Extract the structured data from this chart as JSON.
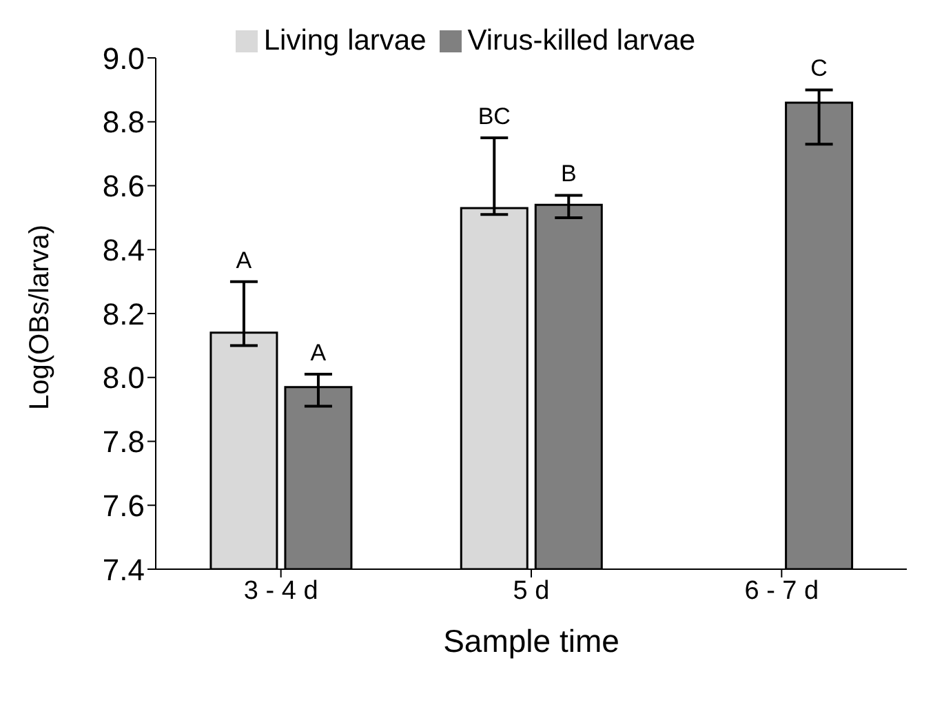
{
  "chart_data": {
    "type": "bar",
    "categories": [
      "3 - 4 d",
      "5 d",
      "6 - 7 d"
    ],
    "series": [
      {
        "name": "Living larvae",
        "color": "#d9d9d9",
        "values": [
          8.14,
          8.53,
          null
        ],
        "errors": [
          [
            8.1,
            8.3
          ],
          [
            8.51,
            8.75
          ],
          null
        ]
      },
      {
        "name": "Virus-killed larvae",
        "color": "#808080",
        "values": [
          7.97,
          8.54,
          8.86
        ],
        "errors": [
          [
            7.91,
            8.01
          ],
          [
            8.5,
            8.57
          ],
          [
            8.73,
            8.9
          ]
        ]
      }
    ],
    "xlabel": "Sample time",
    "ylabel": "Log(OBs/larva)",
    "ylim": [
      7.4,
      9.0
    ],
    "yticks": [
      7.4,
      7.6,
      7.8,
      {
        "value": 8.0,
        "label": "8.0"
      },
      8.2,
      8.4,
      8.6,
      8.8,
      {
        "value": 9.0,
        "label": "9.0"
      }
    ],
    "annotations": [
      "A",
      "A",
      "BC",
      "B",
      "C"
    ],
    "grid": false,
    "legend": "top"
  }
}
